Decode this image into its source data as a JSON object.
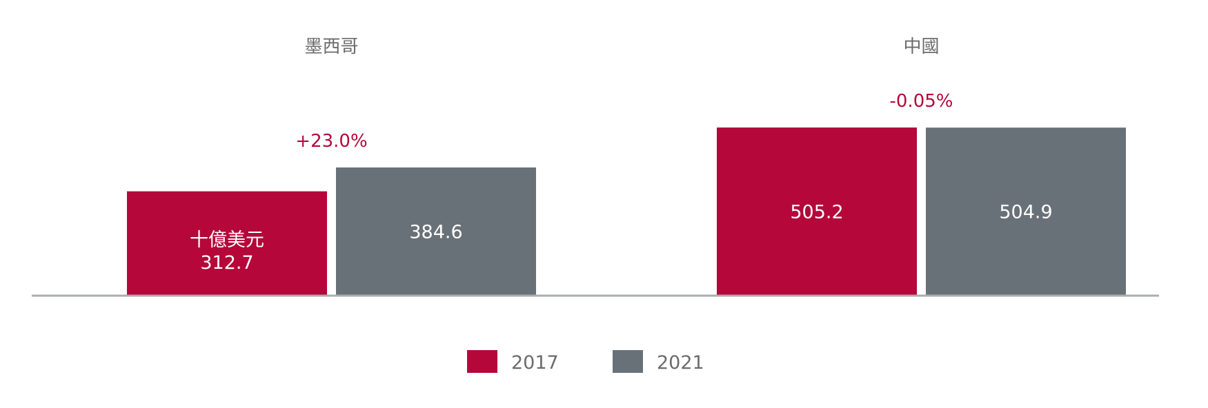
{
  "chart_data": {
    "type": "bar",
    "categories": [
      "墨西哥",
      "中國"
    ],
    "series": [
      {
        "name": "2017",
        "color": "#b5073a",
        "values": [
          312.7,
          505.2
        ]
      },
      {
        "name": "2021",
        "color": "#697178",
        "values": [
          384.6,
          504.9
        ]
      }
    ],
    "unit_label": "十億美元",
    "changes": [
      "+23.0%",
      "-0.05%"
    ],
    "ylim": [
      0,
      505.2
    ],
    "grid": false,
    "legend_position": "bottom-center",
    "axis_color": "#a9aeb2"
  }
}
